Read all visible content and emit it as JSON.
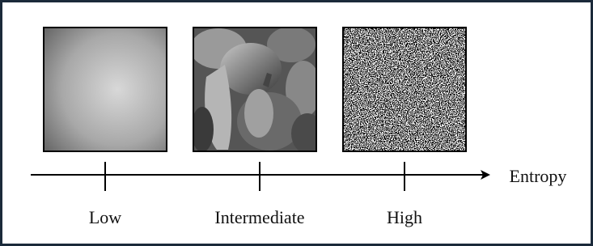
{
  "axis": {
    "label": "Entropy",
    "ticks": [
      "Low",
      "Intermediate",
      "High"
    ]
  }
}
